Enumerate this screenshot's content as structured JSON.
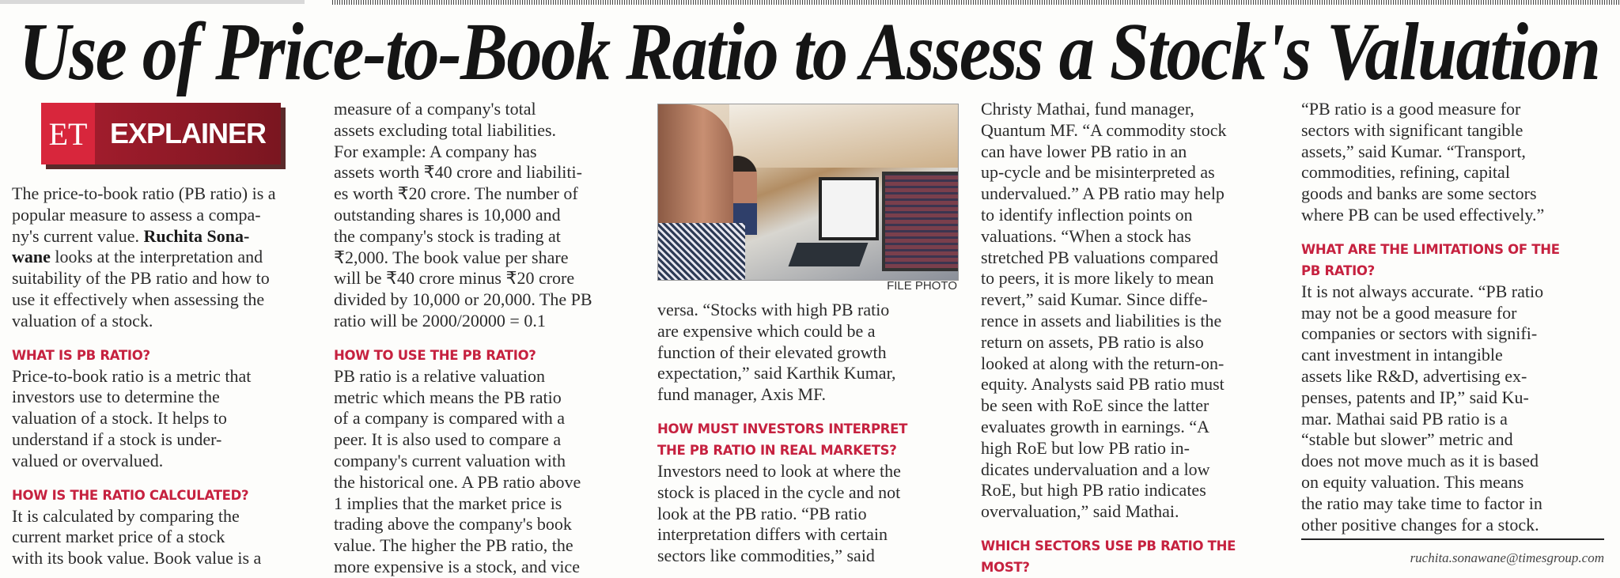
{
  "headline": "Use of Price-to-Book Ratio to Assess a Stock's Valuation",
  "badge": {
    "et": "ET",
    "label": "EXPLAINER"
  },
  "colors": {
    "heading": "#c6213f",
    "badge_light": "#d8263c",
    "badge_dark": "#8c1a24"
  },
  "photo": {
    "caption": "FILE PHOTO"
  },
  "byline_email": "ruchita.sonawane@timesgroup.com",
  "columns": [
    [
      {
        "type": "p",
        "lines": [
          "The price-to-book ratio (PB ratio) is a",
          "popular measure to assess a compa-",
          [
            "ny's current value. ",
            {
              "b": "Ruchita Sona-"
            }
          ],
          [
            {
              "b": "wane"
            },
            " looks at the interpretation and"
          ],
          "suitability of the PB ratio and how to",
          "use it effectively when assessing the",
          "valuation of a stock."
        ]
      },
      {
        "type": "h",
        "lines": [
          "WHAT IS PB RATIO?"
        ]
      },
      {
        "type": "p",
        "lines": [
          "Price-to-book ratio is a metric that",
          "investors use to determine the",
          "valuation of a stock. It helps to",
          "understand if a stock is under-",
          "valued or overvalued."
        ]
      },
      {
        "type": "h",
        "lines": [
          "HOW IS THE RATIO CALCULATED?"
        ]
      },
      {
        "type": "p",
        "lines": [
          "It is calculated by comparing the",
          "current market price of a stock",
          "with its book value. Book value is a"
        ]
      }
    ],
    [
      {
        "type": "p",
        "lines": [
          "measure of a company's total",
          "assets excluding total liabilities.",
          "For example: A company has",
          "assets worth ₹40 crore and liabiliti-",
          "es worth ₹20 crore. The number of",
          "outstanding shares is 10,000 and",
          "the company's stock is trading at",
          "₹2,000. The book value per share",
          "will be ₹40 crore minus ₹20 crore",
          "divided by 10,000 or 20,000. The PB",
          "ratio will be 2000/20000 = 0.1"
        ]
      },
      {
        "type": "h",
        "lines": [
          "HOW TO USE THE PB RATIO?"
        ]
      },
      {
        "type": "p",
        "lines": [
          "PB ratio is a relative valuation",
          "metric which means the PB ratio",
          "of a company is compared with a",
          "peer. It is also used to compare a",
          "company's current valuation with",
          "the historical one. A PB ratio above",
          "1 implies that the market price is",
          "trading above the company's book",
          "value. The higher the PB ratio, the",
          "more expensive is a stock, and vice"
        ]
      }
    ],
    [
      {
        "type": "p",
        "lines": [
          "versa. “Stocks with high PB ratio",
          "are expensive which could be a",
          "function of their elevated growth",
          "expectation,” said Karthik Kumar,",
          "fund manager, Axis MF."
        ]
      },
      {
        "type": "h",
        "lines": [
          "HOW MUST INVESTORS INTERPRET",
          "THE PB RATIO IN REAL MARKETS?"
        ]
      },
      {
        "type": "p",
        "lines": [
          "Investors need to look at where the",
          "stock is placed in the cycle and not",
          "look at the PB ratio. “PB ratio",
          "interpretation differs with certain",
          "sectors like commodities,” said"
        ]
      }
    ],
    [
      {
        "type": "p",
        "lines": [
          "Christy Mathai, fund manager,",
          "Quantum MF. “A commodity stock",
          "can have lower PB ratio in an",
          "up-cycle and be misinterpreted as",
          "undervalued.” A PB ratio may help",
          "to identify inflection points on",
          "valuations. “When a stock has",
          "stretched PB valuations compared",
          "to peers, it is more likely to mean",
          "revert,” said Kumar. Since diffe-",
          "rence in assets and liabilities is the",
          "return on assets, PB ratio is also",
          "looked at along with the return-on-",
          "equity. Analysts said PB ratio must",
          "be seen with RoE since the latter",
          "evaluates growth in earnings. “A",
          "high RoE but low PB ratio in-",
          "dicates undervaluation and a low",
          "RoE, but high PB ratio indicates",
          "overvaluation,” said Mathai."
        ]
      },
      {
        "type": "h",
        "lines": [
          "WHICH SECTORS USE PB RATIO THE",
          "MOST?"
        ]
      }
    ],
    [
      {
        "type": "p",
        "lines": [
          "“PB ratio is a good measure for",
          "sectors with significant tangible",
          "assets,” said Kumar. “Transport,",
          "commodities, refining, capital",
          "goods and banks are some sectors",
          "where PB can be used effectively.”"
        ]
      },
      {
        "type": "h",
        "lines": [
          "WHAT ARE THE LIMITATIONS OF THE",
          "PB RATIO?"
        ]
      },
      {
        "type": "p",
        "lines": [
          "It is not always accurate. “PB ratio",
          "may not be a good measure for",
          "companies or sectors with signifi-",
          "cant investment in intangible",
          "assets like R&D, advertising ex-",
          "penses, patents and IP,” said Ku-",
          "mar. Mathai said PB ratio is a",
          "“stable but slower” metric and",
          "does not move much as it is based",
          "on equity valuation. This means",
          "the ratio may take time to factor in",
          "other positive changes for a stock."
        ]
      }
    ]
  ]
}
